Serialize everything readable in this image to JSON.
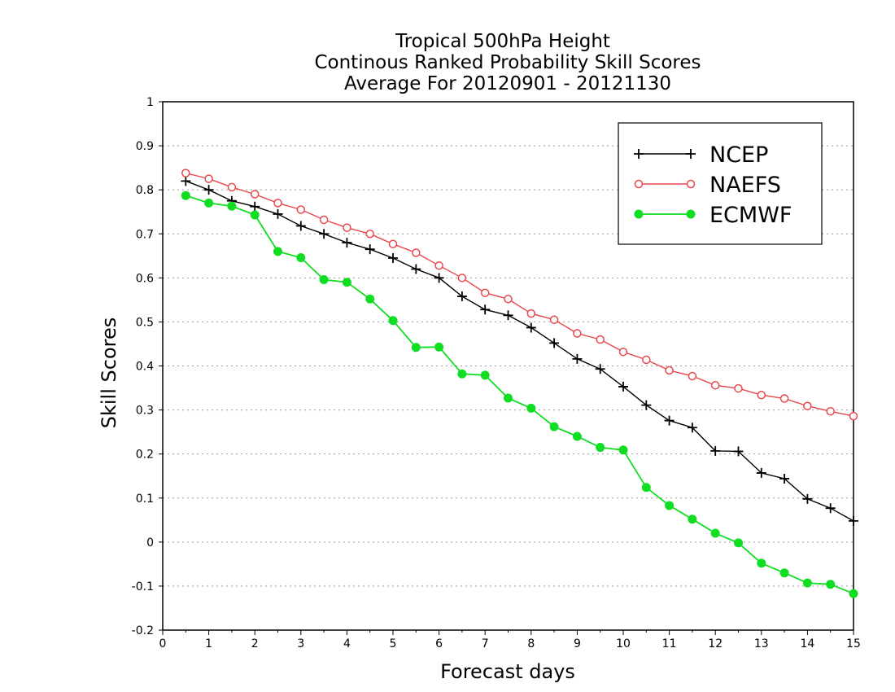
{
  "chart_data": {
    "type": "line",
    "title": [
      "Tropical 500hPa Height",
      "Continous Ranked Probability Skill Scores",
      "Average For 20120901 - 20121130"
    ],
    "xlabel": "Forecast days",
    "ylabel": "Skill Scores",
    "xlim": [
      0,
      15
    ],
    "ylim": [
      -0.2,
      1
    ],
    "xticks": [
      "0",
      "1",
      "2",
      "3",
      "4",
      "5",
      "6",
      "7",
      "8",
      "9",
      "10",
      "11",
      "12",
      "13",
      "14",
      "15"
    ],
    "yticks": [
      "-0.2",
      "-0.1",
      "0",
      "0.1",
      "0.2",
      "0.3",
      "0.4",
      "0.5",
      "0.6",
      "0.7",
      "0.8",
      "0.9",
      "1"
    ],
    "grid": true,
    "legend_position": "top-right",
    "x": [
      0.5,
      1,
      1.5,
      2,
      2.5,
      3,
      3.5,
      4,
      4.5,
      5,
      5.5,
      6,
      6.5,
      7,
      7.5,
      8,
      8.5,
      9,
      9.5,
      10,
      10.5,
      11,
      11.5,
      12,
      12.5,
      13,
      13.5,
      14,
      14.5,
      15
    ],
    "series": [
      {
        "name": "NCEP",
        "color": "#000000",
        "marker": "plus",
        "values": [
          0.82,
          0.8,
          0.775,
          0.762,
          0.745,
          0.718,
          0.7,
          0.68,
          0.665,
          0.645,
          0.62,
          0.6,
          0.558,
          0.528,
          0.515,
          0.487,
          0.452,
          0.416,
          0.393,
          0.353,
          0.311,
          0.276,
          0.26,
          0.207,
          0.206,
          0.157,
          0.144,
          0.098,
          0.077,
          0.048
        ]
      },
      {
        "name": "NAEFS",
        "color": "#e8474c",
        "marker": "open-circle",
        "values": [
          0.838,
          0.825,
          0.806,
          0.79,
          0.77,
          0.755,
          0.732,
          0.714,
          0.7,
          0.677,
          0.657,
          0.628,
          0.6,
          0.566,
          0.552,
          0.519,
          0.505,
          0.474,
          0.46,
          0.432,
          0.414,
          0.39,
          0.377,
          0.356,
          0.349,
          0.334,
          0.326,
          0.309,
          0.297,
          0.286
        ]
      },
      {
        "name": "ECMWF",
        "color": "#11dd22",
        "marker": "filled-circle",
        "values": [
          0.787,
          0.77,
          0.763,
          0.743,
          0.66,
          0.646,
          0.596,
          0.59,
          0.552,
          0.503,
          0.442,
          0.443,
          0.382,
          0.379,
          0.327,
          0.304,
          0.262,
          0.24,
          0.215,
          0.209,
          0.124,
          0.083,
          0.052,
          0.02,
          -0.002,
          -0.048,
          -0.07,
          -0.093,
          -0.096,
          -0.117
        ]
      }
    ]
  }
}
